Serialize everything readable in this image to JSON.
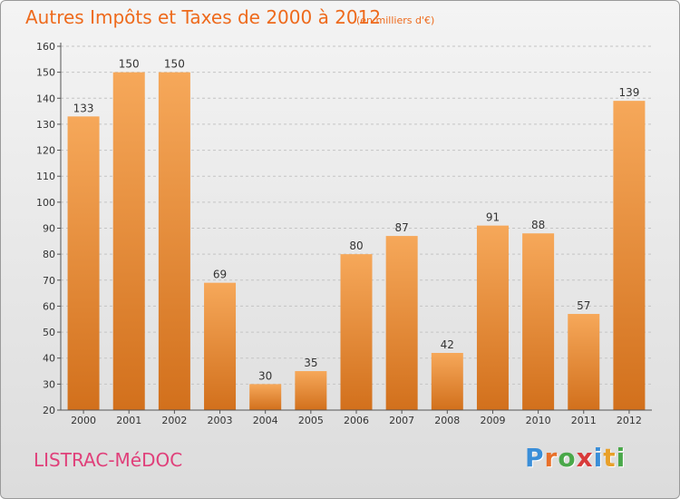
{
  "header": {
    "title": "Autres Impôts et Taxes de 2000 à 2012",
    "unit_note": "(en milliers d'€)"
  },
  "footer": {
    "commune": "LISTRAC-MéDOC",
    "brand_letters": [
      "P",
      "r",
      "o",
      "x",
      "i",
      "t",
      "i"
    ]
  },
  "colors": {
    "title": "#ee6a1c",
    "commune": "#e0407a",
    "bar_light": "#f6a85a",
    "bar_dark": "#d2701c",
    "brand": [
      "#3a8ed8",
      "#e8702a",
      "#4aa84a",
      "#d83a3a",
      "#3a8ed8",
      "#e8a02a",
      "#4aa84a"
    ]
  },
  "chart_data": {
    "type": "bar",
    "title": "Autres Impôts et Taxes de 2000 à 2012",
    "subtitle": "(en milliers d'€)",
    "categories": [
      "2000",
      "2001",
      "2002",
      "2003",
      "2004",
      "2005",
      "2006",
      "2007",
      "2008",
      "2009",
      "2010",
      "2011",
      "2012"
    ],
    "values": [
      133,
      150,
      150,
      69,
      30,
      35,
      80,
      87,
      42,
      91,
      88,
      57,
      139
    ],
    "ylim": [
      20,
      160
    ],
    "yticks": [
      20,
      30,
      40,
      50,
      60,
      70,
      80,
      90,
      100,
      110,
      120,
      130,
      140,
      150,
      160
    ],
    "xlabel": "",
    "ylabel": "",
    "grid": "horizontal dashed",
    "legend": "none"
  }
}
